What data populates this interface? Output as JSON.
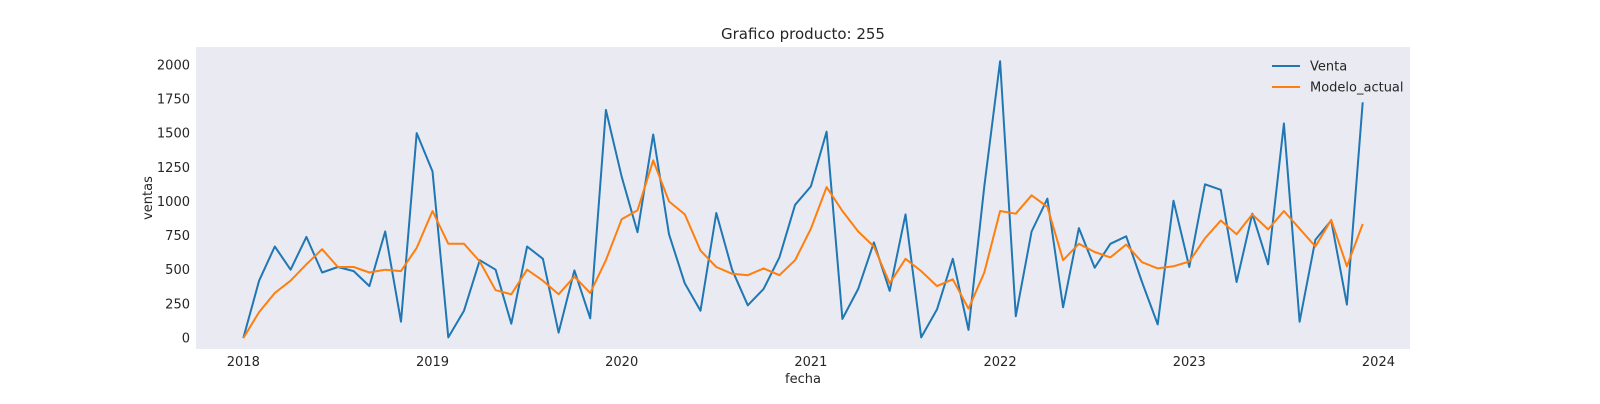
{
  "chart_data": {
    "type": "line",
    "title": "Grafico producto: 255",
    "xlabel": "fecha",
    "ylabel": "ventas",
    "x_start": "2018-01",
    "x_ticks": [
      {
        "label": "2018",
        "date": "2018-01"
      },
      {
        "label": "2019",
        "date": "2019-01"
      },
      {
        "label": "2020",
        "date": "2020-01"
      },
      {
        "label": "2021",
        "date": "2021-01"
      },
      {
        "label": "2022",
        "date": "2022-01"
      },
      {
        "label": "2023",
        "date": "2023-01"
      },
      {
        "label": "2024",
        "date": "2024-01"
      }
    ],
    "xlim": [
      "2017-10",
      "2024-03"
    ],
    "ylim": [
      -80,
      2130
    ],
    "y_ticks": [
      0,
      250,
      500,
      750,
      1000,
      1250,
      1500,
      1750,
      2000
    ],
    "grid": false,
    "legend_position": "top-right",
    "background": "#eaeaf2",
    "series": [
      {
        "name": "Venta",
        "color": "#1f77b4",
        "values": [
          0,
          420,
          670,
          500,
          740,
          480,
          520,
          490,
          380,
          780,
          120,
          1500,
          1220,
          5,
          200,
          570,
          500,
          105,
          670,
          580,
          40,
          495,
          145,
          1670,
          1180,
          775,
          1490,
          760,
          400,
          200,
          915,
          500,
          240,
          360,
          590,
          975,
          1110,
          1510,
          140,
          360,
          700,
          345,
          905,
          5,
          210,
          580,
          60,
          1110,
          2025,
          160,
          780,
          1020,
          225,
          805,
          515,
          690,
          745,
          410,
          100,
          1005,
          520,
          1125,
          1085,
          410,
          910,
          540,
          1570,
          120,
          720,
          860,
          245,
          1725
        ]
      },
      {
        "name": "Modelo_actual",
        "color": "#ff7f0e",
        "values": [
          0,
          190,
          330,
          420,
          540,
          650,
          520,
          520,
          480,
          500,
          490,
          660,
          930,
          690,
          690,
          560,
          350,
          320,
          500,
          420,
          320,
          450,
          330,
          570,
          870,
          935,
          1300,
          1000,
          905,
          640,
          520,
          470,
          460,
          510,
          460,
          570,
          800,
          1105,
          930,
          780,
          670,
          400,
          580,
          490,
          380,
          430,
          215,
          480,
          930,
          910,
          1045,
          960,
          570,
          690,
          630,
          590,
          685,
          555,
          510,
          525,
          560,
          730,
          860,
          760,
          905,
          795,
          930,
          800,
          670,
          865,
          525,
          835
        ]
      }
    ]
  }
}
